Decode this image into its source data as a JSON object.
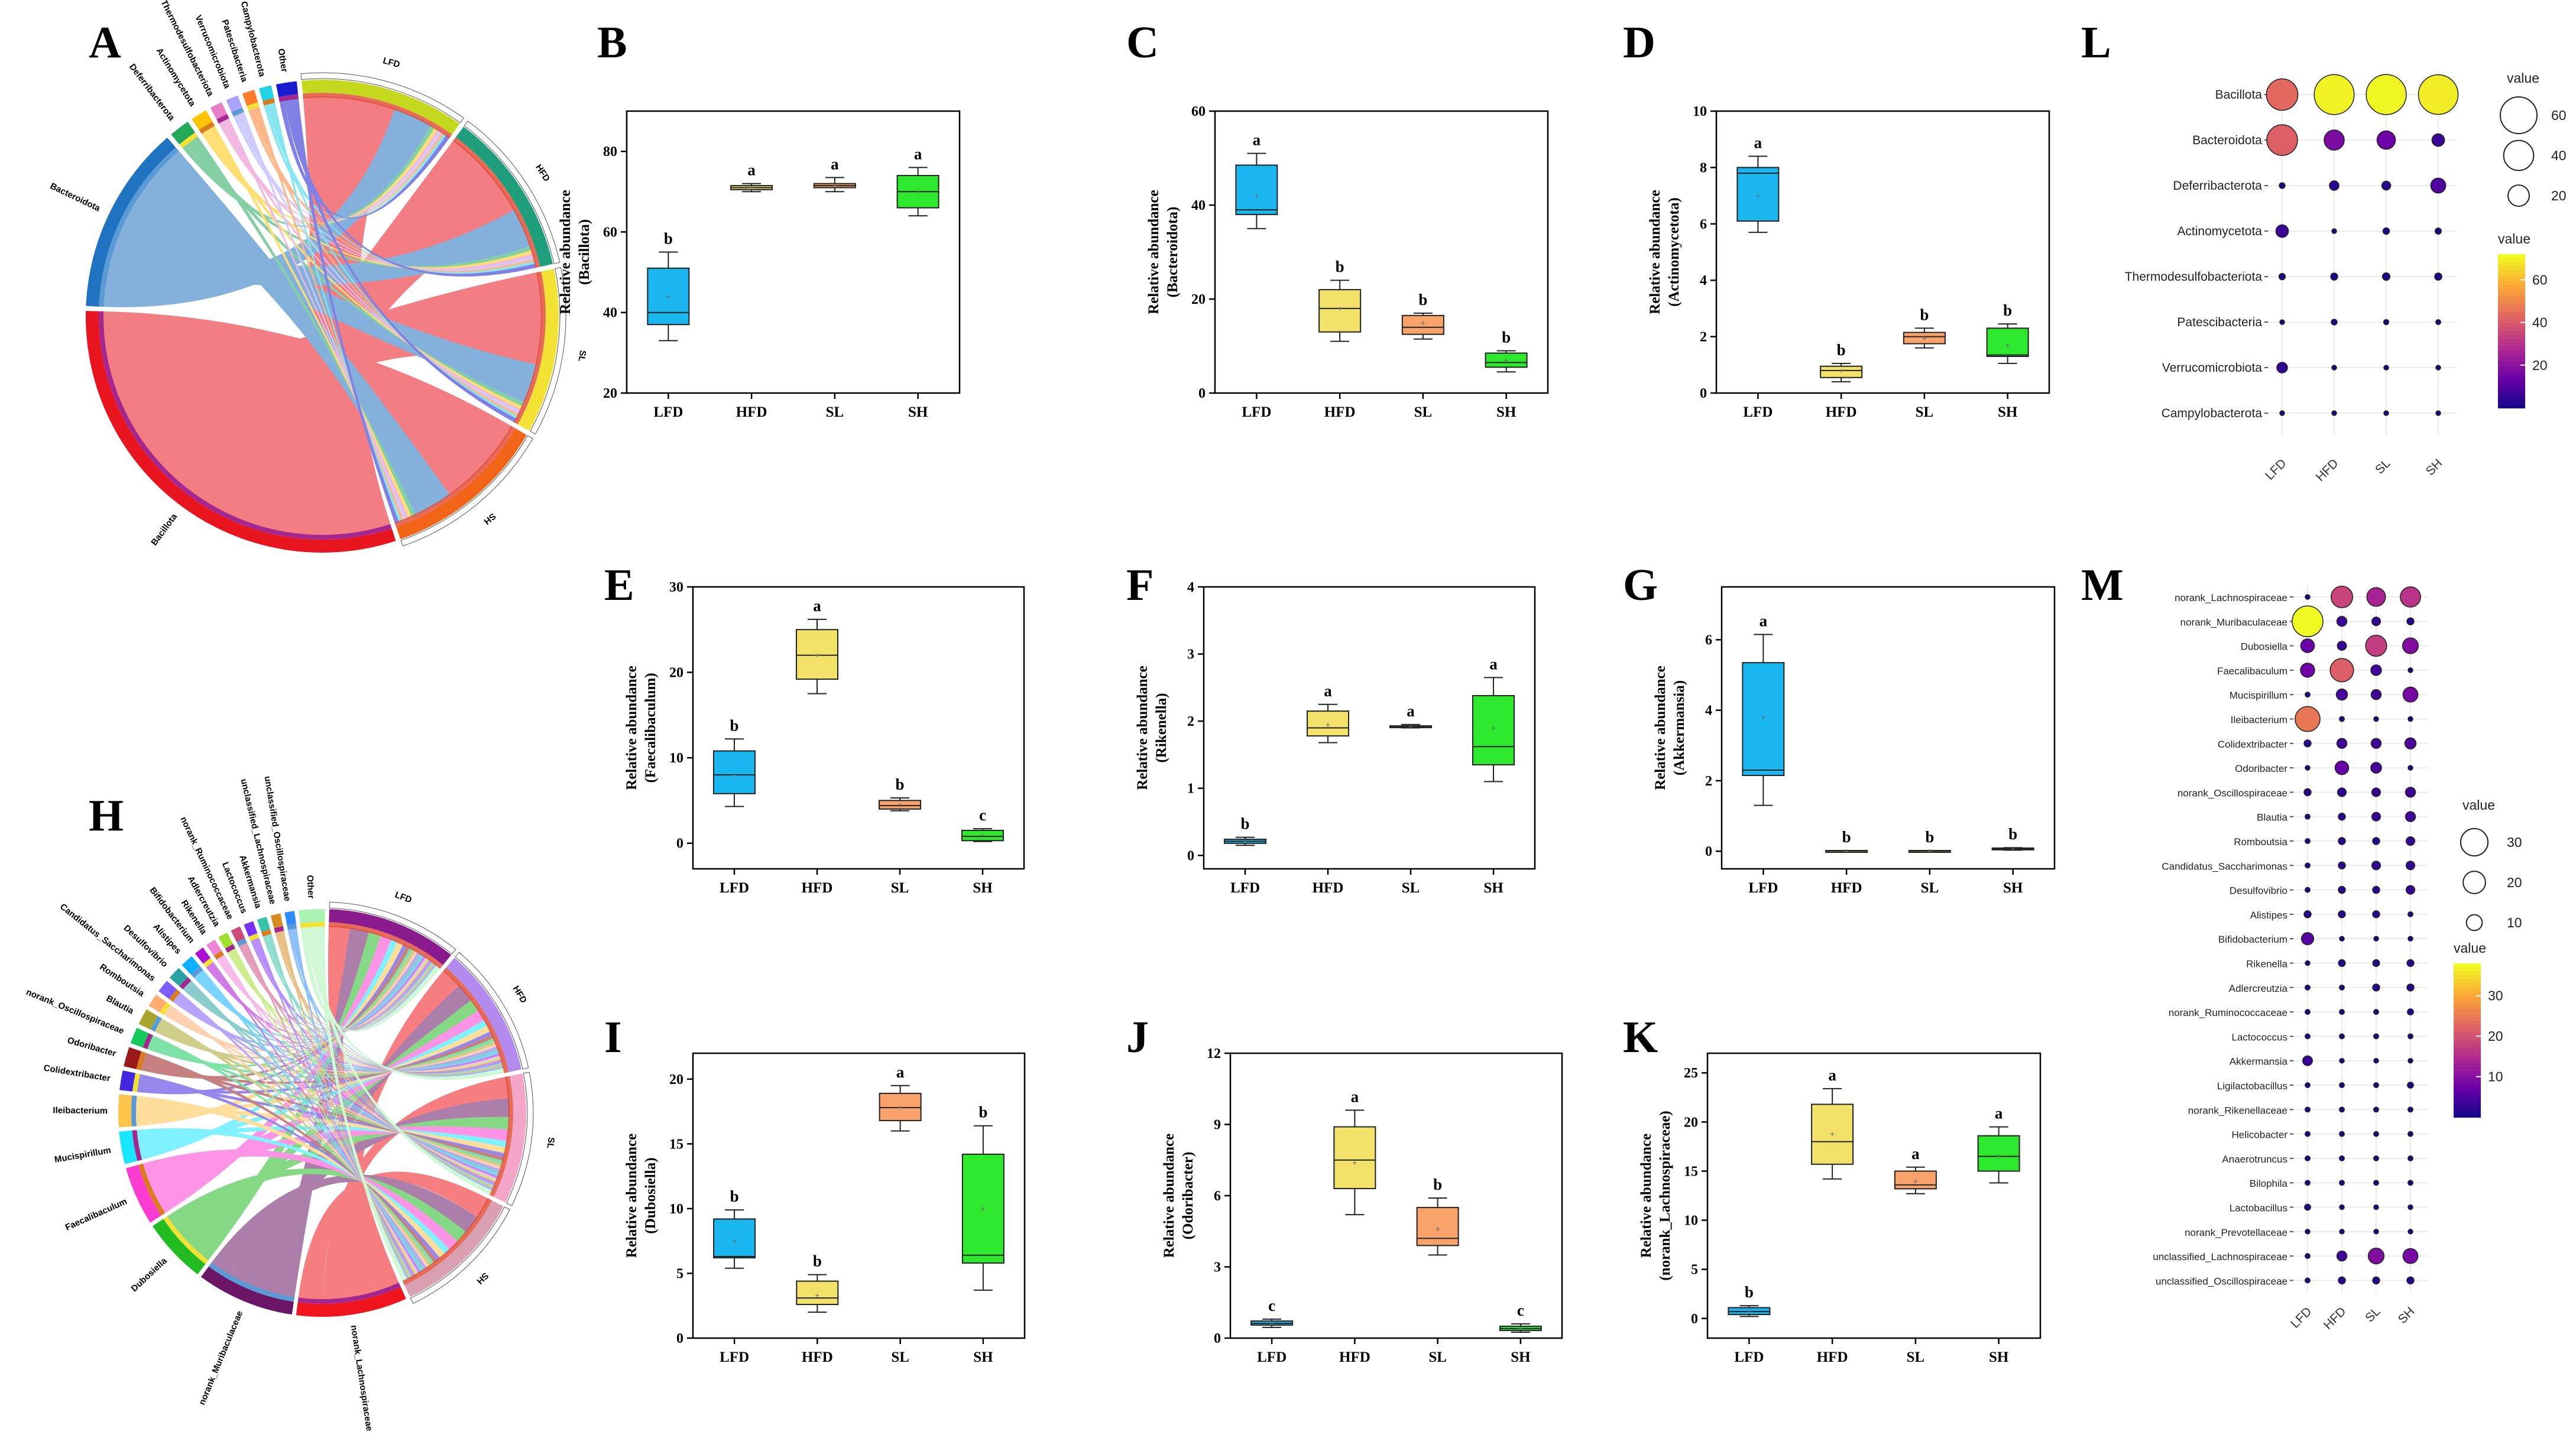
{
  "chart_data": {
    "panels": [
      {
        "type": "box",
        "label": "B",
        "ylabel": "Relative abundance",
        "yvar": "(Bacillota)",
        "ylim": [
          20,
          90
        ],
        "ticks": [
          20,
          40,
          60,
          80
        ],
        "categories": [
          "LFD",
          "HFD",
          "SL",
          "SH"
        ],
        "colors": [
          "#1ab6f0",
          "#f2e26a",
          "#f9a36a",
          "#2ee82e"
        ],
        "letters": [
          "b",
          "a",
          "a",
          "a"
        ],
        "boxes": [
          [
            33,
            37,
            40,
            51,
            55
          ],
          [
            70,
            70.5,
            71,
            71.5,
            72
          ],
          [
            70,
            71,
            71.5,
            72,
            73.5
          ],
          [
            64,
            66,
            70,
            74,
            76
          ]
        ],
        "means": [
          44,
          71,
          71.5,
          70
        ]
      },
      {
        "type": "box",
        "label": "C",
        "ylabel": "Relative abundance",
        "yvar": "(Bacteroidota)",
        "ylim": [
          0,
          60
        ],
        "ticks": [
          0,
          20,
          40,
          60
        ],
        "categories": [
          "LFD",
          "HFD",
          "SL",
          "SH"
        ],
        "colors": [
          "#1ab6f0",
          "#f2e26a",
          "#f9a36a",
          "#2ee82e"
        ],
        "letters": [
          "a",
          "b",
          "b",
          "b"
        ],
        "boxes": [
          [
            35,
            38,
            39,
            48.5,
            51
          ],
          [
            11,
            13,
            18,
            22,
            24
          ],
          [
            11.5,
            12.5,
            14,
            16.5,
            17
          ],
          [
            4.5,
            5.5,
            6.5,
            8.5,
            9
          ]
        ],
        "means": [
          42,
          18,
          15,
          7
        ]
      },
      {
        "type": "box",
        "label": "D",
        "ylabel": "Relative abundance",
        "yvar": "(Actinomycetota)",
        "ylim": [
          0,
          10
        ],
        "ticks": [
          0,
          2,
          4,
          6,
          8,
          10
        ],
        "categories": [
          "LFD",
          "HFD",
          "SL",
          "SH"
        ],
        "colors": [
          "#1ab6f0",
          "#f2e26a",
          "#f9a36a",
          "#2ee82e"
        ],
        "letters": [
          "a",
          "b",
          "b",
          "b"
        ],
        "boxes": [
          [
            5.7,
            6.1,
            7.8,
            8,
            8.4
          ],
          [
            0.4,
            0.55,
            0.8,
            0.95,
            1.05
          ],
          [
            1.6,
            1.75,
            2,
            2.15,
            2.3
          ],
          [
            1.05,
            1.3,
            1.35,
            2.3,
            2.45
          ]
        ],
        "means": [
          7,
          0.8,
          1.95,
          1.7
        ]
      },
      {
        "type": "box",
        "label": "E",
        "ylabel": "Relative abundance",
        "yvar": "(Faecalibaculum)",
        "ylim": [
          -3,
          30
        ],
        "ticks": [
          0,
          10,
          20,
          30
        ],
        "categories": [
          "LFD",
          "HFD",
          "SL",
          "SH"
        ],
        "colors": [
          "#1ab6f0",
          "#f2e26a",
          "#f9a36a",
          "#2ee82e"
        ],
        "letters": [
          "b",
          "a",
          "b",
          "c"
        ],
        "boxes": [
          [
            4.3,
            5.8,
            8,
            10.8,
            12.2
          ],
          [
            17.5,
            19.2,
            22,
            25,
            26.2
          ],
          [
            3.8,
            4,
            4.4,
            5,
            5.3
          ],
          [
            0.2,
            0.3,
            0.8,
            1.5,
            1.7
          ]
        ],
        "means": [
          8,
          22,
          4.5,
          0.9
        ]
      },
      {
        "type": "box",
        "label": "F",
        "ylabel": "Relative abundance",
        "yvar": "(Rikenella)",
        "ylim": [
          -0.2,
          4
        ],
        "ticks": [
          0,
          1,
          2,
          3,
          4
        ],
        "categories": [
          "LFD",
          "HFD",
          "SL",
          "SH"
        ],
        "colors": [
          "#1ab6f0",
          "#f2e26a",
          "#f9a36a",
          "#2ee82e"
        ],
        "letters": [
          "b",
          "a",
          "a",
          "a"
        ],
        "boxes": [
          [
            0.15,
            0.18,
            0.21,
            0.24,
            0.27
          ],
          [
            1.68,
            1.78,
            1.9,
            2.15,
            2.25
          ],
          [
            1.9,
            1.91,
            1.92,
            1.93,
            1.95
          ],
          [
            1.1,
            1.35,
            1.62,
            2.38,
            2.65
          ]
        ],
        "means": [
          0.21,
          1.95,
          1.92,
          1.9
        ]
      },
      {
        "type": "box",
        "label": "G",
        "ylabel": "Relative abundance",
        "yvar": "(Akkermansia)",
        "ylim": [
          -0.5,
          7.5
        ],
        "ticks": [
          0,
          2,
          4,
          6
        ],
        "categories": [
          "LFD",
          "HFD",
          "SL",
          "SH"
        ],
        "colors": [
          "#1ab6f0",
          "#f2e26a",
          "#f9a36a",
          "#2ee82e"
        ],
        "letters": [
          "a",
          "b",
          "b",
          "b"
        ],
        "boxes": [
          [
            1.3,
            2.15,
            2.3,
            5.35,
            6.15
          ],
          [
            0,
            0,
            0.01,
            0.02,
            0.02
          ],
          [
            0,
            0,
            0.01,
            0.02,
            0.02
          ],
          [
            0.03,
            0.05,
            0.07,
            0.09,
            0.1
          ]
        ],
        "means": [
          3.8,
          0.01,
          0.01,
          0.07
        ]
      },
      {
        "type": "box",
        "label": "I",
        "ylabel": "Relative abundance",
        "yvar": "(Dubosiella)",
        "ylim": [
          0,
          22
        ],
        "ticks": [
          0,
          5,
          10,
          15,
          20
        ],
        "categories": [
          "LFD",
          "HFD",
          "SL",
          "SH"
        ],
        "colors": [
          "#1ab6f0",
          "#f2e26a",
          "#f9a36a",
          "#2ee82e"
        ],
        "letters": [
          "b",
          "b",
          "a",
          "b"
        ],
        "boxes": [
          [
            5.4,
            6.2,
            6.3,
            9.2,
            9.9
          ],
          [
            2,
            2.6,
            3.1,
            4.4,
            4.9
          ],
          [
            16,
            16.8,
            17.8,
            18.9,
            19.5
          ],
          [
            3.7,
            5.8,
            6.4,
            14.2,
            16.4
          ]
        ],
        "means": [
          7.5,
          3.3,
          17.8,
          10
        ]
      },
      {
        "type": "box",
        "label": "J",
        "ylabel": "Relative abundance",
        "yvar": "(Odoribacter)",
        "ylim": [
          0,
          12
        ],
        "ticks": [
          0,
          3,
          6,
          9,
          12
        ],
        "categories": [
          "LFD",
          "HFD",
          "SL",
          "SH"
        ],
        "colors": [
          "#1ab6f0",
          "#f2e26a",
          "#f9a36a",
          "#2ee82e"
        ],
        "letters": [
          "c",
          "a",
          "b",
          "c"
        ],
        "boxes": [
          [
            0.45,
            0.55,
            0.62,
            0.72,
            0.8
          ],
          [
            5.2,
            6.3,
            7.5,
            8.9,
            9.6
          ],
          [
            3.5,
            3.9,
            4.2,
            5.5,
            5.9
          ],
          [
            0.25,
            0.32,
            0.4,
            0.5,
            0.6
          ]
        ],
        "means": [
          0.63,
          7.4,
          4.6,
          0.42
        ]
      },
      {
        "type": "box",
        "label": "K",
        "ylabel": "Relative abundance",
        "yvar": "(norank_Lachnospiraceae)",
        "ylim": [
          -2,
          27
        ],
        "ticks": [
          0,
          5,
          10,
          15,
          20,
          25
        ],
        "categories": [
          "LFD",
          "HFD",
          "SL",
          "SH"
        ],
        "colors": [
          "#1ab6f0",
          "#f2e26a",
          "#f9a36a",
          "#2ee82e"
        ],
        "letters": [
          "b",
          "a",
          "a",
          "a"
        ],
        "boxes": [
          [
            0.2,
            0.4,
            0.7,
            1.1,
            1.3
          ],
          [
            14.2,
            15.7,
            18,
            21.8,
            23.4
          ],
          [
            12.7,
            13.2,
            13.6,
            15,
            15.4
          ],
          [
            13.8,
            15,
            16.5,
            18.6,
            19.5
          ]
        ],
        "means": [
          0.7,
          18.8,
          14,
          16.5
        ]
      },
      {
        "type": "dotplot",
        "label": "L",
        "groups": [
          "LFD",
          "HFD",
          "SL",
          "SH"
        ],
        "taxa": [
          "Bacillota",
          "Bacteroidota",
          "Deferribacterota",
          "Actinomycetota",
          "Thermodesulfobacteriota",
          "Patescibacteria",
          "Verrucomicrobiota",
          "Campylobacterota"
        ],
        "values": [
          [
            44,
            71,
            71.5,
            70
          ],
          [
            42,
            18,
            15,
            7
          ],
          [
            1.5,
            4,
            3.5,
            10
          ],
          [
            7,
            0.8,
            1.9,
            1.7
          ],
          [
            1.8,
            2.2,
            2.5,
            2.3
          ],
          [
            0.8,
            1.5,
            1.2,
            1.1
          ],
          [
            5,
            0.4,
            0.2,
            0.3
          ],
          [
            0.6,
            1,
            0.9,
            0.7
          ]
        ],
        "size_legend_title": "value",
        "size_legend": [
          60,
          40,
          20
        ],
        "color_legend_title": "value",
        "color_ticks": [
          20,
          40,
          60
        ],
        "vmax": 72
      },
      {
        "type": "dotplot",
        "label": "M",
        "groups": [
          "LFD",
          "HFD",
          "SL",
          "SH"
        ],
        "taxa": [
          "norank_Lachnospiraceae",
          "norank_Muribaculaceae",
          "Dubosiella",
          "Faecalibaculum",
          "Mucispirillum",
          "Ileibacterium",
          "Colidextribacter",
          "Odoribacter",
          "norank_Oscillospiraceae",
          "Blautia",
          "Romboutsia",
          "Candidatus_Saccharimonas",
          "Desulfovibrio",
          "Alistipes",
          "Bifidobacterium",
          "Rikenella",
          "Adlercreutzia",
          "norank_Ruminococcaceae",
          "Lactococcus",
          "Akkermansia",
          "Ligilactobacillus",
          "norank_Rikenellaceae",
          "Helicobacter",
          "Anaerotruncus",
          "Bilophila",
          "Lactobacillus",
          "norank_Prevotellaceae",
          "unclassified_Lachnospiraceae",
          "unclassified_Oscillospiraceae"
        ],
        "values": [
          [
            0.7,
            18.8,
            14,
            16.5
          ],
          [
            38,
            4,
            3,
            2
          ],
          [
            7.5,
            3.3,
            17.8,
            10
          ],
          [
            8,
            22,
            4.5,
            0.9
          ],
          [
            1,
            5,
            4,
            9
          ],
          [
            25,
            1,
            0.5,
            0.5
          ],
          [
            2,
            4,
            4,
            5
          ],
          [
            0.6,
            7.4,
            4.6,
            0.4
          ],
          [
            2,
            3,
            3,
            4
          ],
          [
            1,
            2,
            3,
            4
          ],
          [
            1,
            2,
            2,
            3
          ],
          [
            1,
            2,
            3,
            3
          ],
          [
            1,
            2,
            2,
            3
          ],
          [
            2,
            2,
            2,
            1
          ],
          [
            6,
            0.5,
            0.5,
            0.5
          ],
          [
            0.2,
            1.9,
            1.9,
            1.9
          ],
          [
            1,
            1,
            2,
            2
          ],
          [
            1,
            1,
            1,
            1.5
          ],
          [
            1,
            1,
            1,
            1
          ],
          [
            3.8,
            0.01,
            0.01,
            0.07
          ],
          [
            1,
            1,
            1,
            1.5
          ],
          [
            1,
            1,
            1,
            1
          ],
          [
            1,
            1,
            1,
            1
          ],
          [
            1,
            1,
            1,
            1
          ],
          [
            1,
            1,
            1,
            1
          ],
          [
            1.5,
            0.5,
            0.5,
            0.5
          ],
          [
            0.5,
            0.5,
            0.5,
            0.5
          ],
          [
            1,
            4,
            10,
            9
          ],
          [
            1,
            2,
            2,
            2
          ]
        ],
        "size_legend_title": "value",
        "size_legend": [
          30,
          20,
          10
        ],
        "color_legend_title": "value",
        "color_ticks": [
          10,
          20,
          30
        ],
        "vmax": 38
      },
      {
        "type": "chord",
        "label": "A",
        "taxa": [
          "Bacillota",
          "Bacteroidota",
          "Deferribacterota",
          "Actinomycetota",
          "Thermodesulfobacteriota",
          "Verrucomicrobiota",
          "Patescibacteria",
          "Campylobacterota",
          "Other"
        ],
        "groups": [
          "LFD",
          "HFD",
          "SL",
          "SH"
        ]
      },
      {
        "type": "chord",
        "label": "H",
        "taxa": [
          "norank_Lachnospiraceae",
          "norank_Muribaculaceae",
          "Dubosiella",
          "Faecalibaculum",
          "Mucispirillum",
          "Ileibacterium",
          "Colidextribacter",
          "Odoribacter",
          "norank_Oscillospiraceae",
          "Blautia",
          "Romboutsia",
          "Candidatus_Saccharimonas",
          "Desulfovibrio",
          "Alistipes",
          "Bifidobacterium",
          "Rikenella",
          "Adlercreutzia",
          "norank_Ruminococcaceae",
          "Lactococcus",
          "Akkermansia",
          "unclassified_Lachnospiraceae",
          "unclassified_Oscillospiraceae",
          "Other"
        ],
        "groups": [
          "LFD",
          "HFD",
          "SL",
          "SH"
        ]
      }
    ]
  }
}
